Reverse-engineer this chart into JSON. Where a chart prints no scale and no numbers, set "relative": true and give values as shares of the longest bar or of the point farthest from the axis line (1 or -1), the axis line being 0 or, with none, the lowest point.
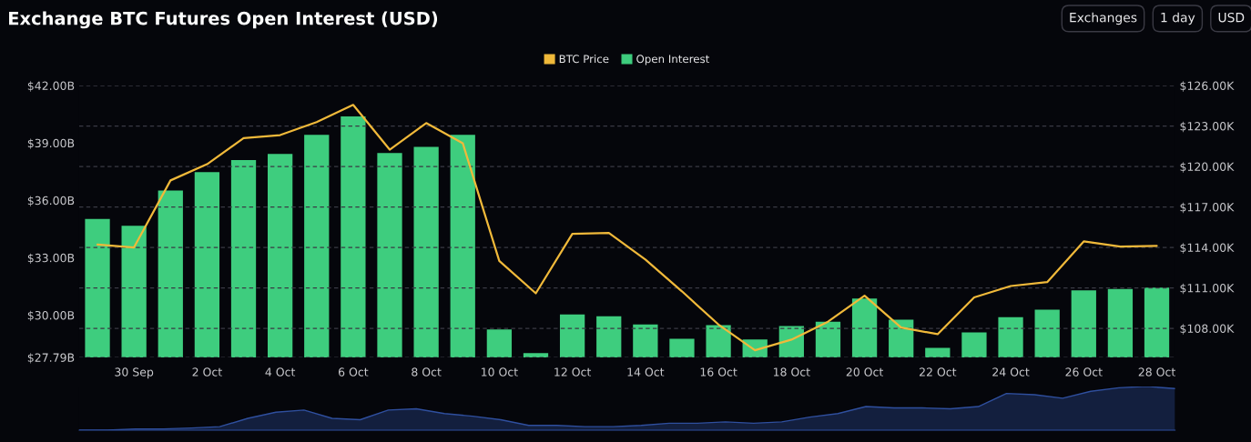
{
  "chart_data": [
    {
      "type": "bar",
      "title": "Exchange BTC Futures Open Interest (USD)",
      "annotations": [
        "Exchanges",
        "1 day",
        "USD"
      ],
      "categories": [
        null,
        "30 Sep",
        null,
        "2 Oct",
        null,
        "4 Oct",
        null,
        "6 Oct",
        null,
        "8 Oct",
        null,
        "10 Oct",
        null,
        "12 Oct",
        null,
        "14 Oct",
        null,
        "16 Oct",
        null,
        "18 Oct",
        null,
        "20 Oct",
        null,
        "22 Oct",
        null,
        "24 Oct",
        null,
        "26 Oct",
        null,
        "28 Oct"
      ],
      "series": [
        {
          "name": "BTC Price",
          "type": "line",
          "axis": "y2",
          "color": "#f0b93a",
          "values": [
            114.21,
            114.0,
            118.97,
            120.17,
            122.1,
            122.33,
            123.29,
            124.57,
            121.25,
            123.22,
            121.73,
            113.0,
            110.6,
            115.01,
            115.08,
            113.1,
            110.75,
            108.29,
            106.38,
            107.17,
            108.5,
            110.42,
            108.06,
            107.57,
            110.3,
            111.14,
            111.43,
            114.45,
            114.07,
            114.12
          ]
        },
        {
          "name": "Open Interest",
          "type": "bar",
          "color": "#3ecd7e",
          "values": [
            35.03,
            34.67,
            36.51,
            37.48,
            38.11,
            38.43,
            39.43,
            40.39,
            38.47,
            38.8,
            39.43,
            29.25,
            28.01,
            30.03,
            29.94,
            29.51,
            28.76,
            29.48,
            28.73,
            29.43,
            29.65,
            30.87,
            29.76,
            28.29,
            29.1,
            29.89,
            30.29,
            31.3,
            31.37,
            31.44
          ]
        }
      ],
      "ylim": [
        27.79,
        42
      ],
      "yticks": [
        {
          "value": 27.79,
          "label": "$27.79B"
        },
        {
          "value": 30,
          "label": "$30.00B"
        },
        {
          "value": 33,
          "label": "$33.00B"
        },
        {
          "value": 36,
          "label": "$36.00B"
        },
        {
          "value": 39,
          "label": "$39.00B"
        },
        {
          "value": 42,
          "label": "$42.00B"
        }
      ],
      "y2lim": [
        105.85,
        126
      ],
      "y2ticks": [
        {
          "value": 108,
          "label": "$108.00K"
        },
        {
          "value": 111,
          "label": "$111.00K"
        },
        {
          "value": 114,
          "label": "$114.00K"
        },
        {
          "value": 117,
          "label": "$117.00K"
        },
        {
          "value": 120,
          "label": "$120.00K"
        },
        {
          "value": 123,
          "label": "$123.00K"
        },
        {
          "value": 126,
          "label": "$126.00K"
        }
      ],
      "grid": "y2",
      "legend": "top",
      "marker": "none"
    },
    {
      "type": "area",
      "relative": true,
      "categories": [
        null,
        null,
        null,
        null,
        null,
        null,
        null,
        null,
        null,
        null,
        null,
        null,
        null,
        null,
        null,
        null,
        null,
        null,
        null,
        null,
        null,
        null,
        null,
        null,
        null,
        null,
        null,
        null,
        null,
        null,
        null,
        null,
        null,
        null,
        null,
        null,
        null,
        null,
        null,
        null
      ],
      "series": [
        {
          "color": "#2f4f9e",
          "values": [
            0,
            0,
            0.03,
            0.03,
            0.05,
            0.08,
            0.27,
            0.41,
            0.46,
            0.27,
            0.24,
            0.46,
            0.49,
            0.38,
            0.32,
            0.24,
            0.11,
            0.11,
            0.08,
            0.08,
            0.11,
            0.16,
            0.16,
            0.19,
            0.16,
            0.19,
            0.3,
            0.38,
            0.54,
            0.51,
            0.51,
            0.49,
            0.54,
            0.84,
            0.81,
            0.73,
            0.89,
            0.97,
            1,
            0.95
          ]
        }
      ]
    }
  ]
}
